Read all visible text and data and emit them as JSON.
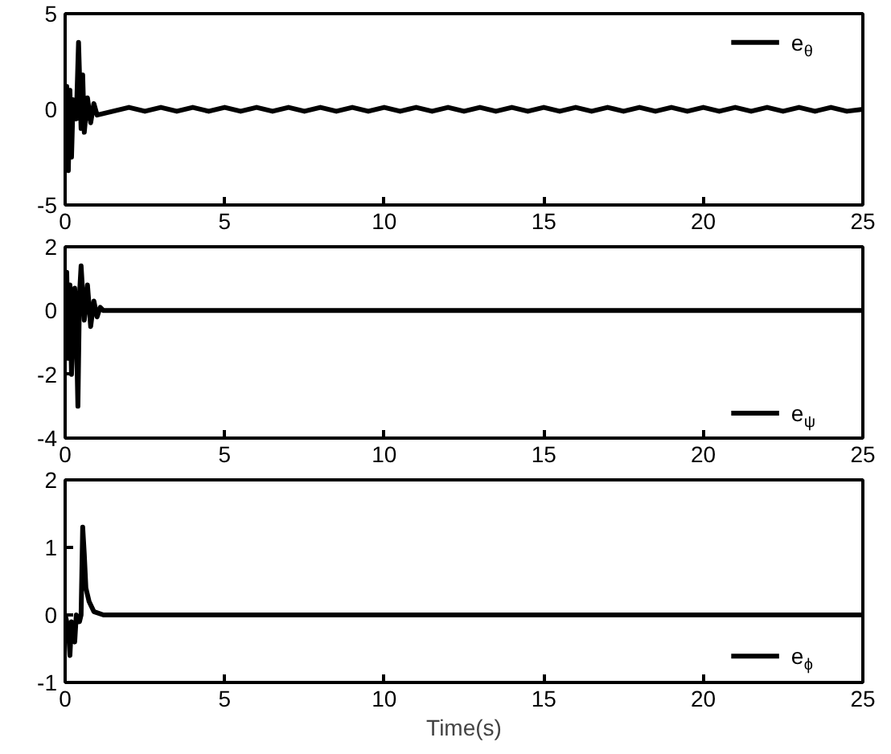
{
  "chart_data": [
    {
      "type": "line",
      "xlim": [
        0,
        25
      ],
      "ylim": [
        -5,
        5
      ],
      "xticks": [
        0,
        5,
        10,
        15,
        20,
        25
      ],
      "yticks": [
        -5,
        0,
        5
      ],
      "grid": false,
      "legend": "top right",
      "series": [
        {
          "name": "e$_{θ}$",
          "color": "#000000",
          "x": [
            0,
            0.05,
            0.1,
            0.15,
            0.2,
            0.25,
            0.35,
            0.42,
            0.5,
            0.55,
            0.6,
            0.7,
            0.8,
            0.9,
            1.0,
            1.5,
            2,
            2.5,
            3,
            3.5,
            4,
            4.5,
            5,
            5.5,
            6,
            6.5,
            7,
            7.5,
            8,
            8.5,
            9,
            9.5,
            10,
            10.5,
            11,
            11.5,
            12,
            12.5,
            13,
            13.5,
            14,
            14.5,
            15,
            15.5,
            16,
            16.5,
            17,
            17.5,
            18,
            18.5,
            19,
            19.5,
            20,
            20.5,
            21,
            21.5,
            22,
            22.5,
            23,
            23.5,
            24,
            24.5,
            25
          ],
          "values": [
            0,
            1.2,
            -3.2,
            1,
            -2.5,
            0.5,
            -0.5,
            3.5,
            -1,
            1.8,
            -1.2,
            0.6,
            -0.7,
            0.3,
            -0.3,
            -0.1,
            0.1,
            -0.1,
            0.1,
            -0.1,
            0.1,
            -0.1,
            0.1,
            -0.1,
            0.1,
            -0.1,
            0.1,
            -0.1,
            0.1,
            -0.1,
            0.1,
            -0.1,
            0.1,
            -0.1,
            0.1,
            -0.1,
            0.1,
            -0.1,
            0.1,
            -0.1,
            0.1,
            -0.1,
            0.1,
            -0.1,
            0.1,
            -0.1,
            0.1,
            -0.1,
            0.1,
            -0.1,
            0.1,
            -0.1,
            0.1,
            -0.1,
            0.1,
            -0.1,
            0.1,
            -0.1,
            0.1,
            -0.1,
            0.1,
            -0.1,
            0
          ]
        }
      ]
    },
    {
      "type": "line",
      "xlim": [
        0,
        25
      ],
      "ylim": [
        -4,
        2
      ],
      "xticks": [
        0,
        5,
        10,
        15,
        20,
        25
      ],
      "yticks": [
        -4,
        -2,
        0,
        2
      ],
      "grid": false,
      "legend": "bottom right",
      "series": [
        {
          "name": "e$_{ψ}$",
          "color": "#000000",
          "x": [
            0,
            0.05,
            0.1,
            0.15,
            0.2,
            0.3,
            0.35,
            0.4,
            0.45,
            0.5,
            0.6,
            0.7,
            0.8,
            0.9,
            1.0,
            1.1,
            1.2,
            25
          ],
          "values": [
            0,
            1.2,
            -1.5,
            0.8,
            -2,
            0.7,
            -0.5,
            -3,
            0.5,
            1.4,
            -0.3,
            0.8,
            -0.5,
            0.3,
            -0.2,
            0.1,
            0,
            0
          ]
        }
      ]
    },
    {
      "type": "line",
      "xlim": [
        0,
        25
      ],
      "ylim": [
        -1,
        2
      ],
      "xticks": [
        0,
        5,
        10,
        15,
        20,
        25
      ],
      "yticks": [
        -1,
        0,
        1,
        2
      ],
      "grid": false,
      "legend": "bottom right",
      "xlabel": "Time(s)",
      "series": [
        {
          "name": "e$_{ϕ}$",
          "color": "#000000",
          "x": [
            0,
            0.1,
            0.15,
            0.2,
            0.3,
            0.35,
            0.45,
            0.5,
            0.55,
            0.6,
            0.65,
            0.75,
            0.9,
            1.2,
            25
          ],
          "values": [
            0,
            -0.2,
            -0.6,
            -0.1,
            -0.4,
            0,
            -0.1,
            0,
            1.3,
            0.9,
            0.4,
            0.2,
            0.05,
            0,
            0
          ]
        }
      ]
    }
  ]
}
